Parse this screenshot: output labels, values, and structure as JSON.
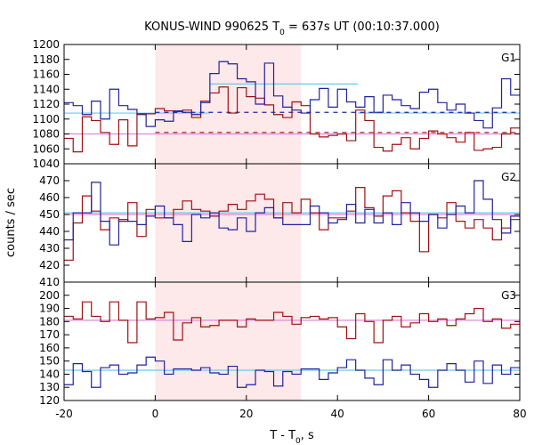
{
  "title": "KONUS-WIND 990625 T",
  "title_sub": "0",
  "title_rest": " = 637s UT (00:10:37.000)",
  "xlabel_main": "T - T",
  "xlabel_sub": "0",
  "xlabel_rest": ", s",
  "ylabel": "counts / sec",
  "colors": {
    "red": "#a01010",
    "blue": "#2222a0",
    "cyan": "#66ccee",
    "pink": "#dd88dd",
    "shade": "#fde8ea"
  },
  "chart_data": {
    "type": "line",
    "style": "step",
    "xlim": [
      -20,
      80
    ],
    "xticks": [
      -20,
      0,
      20,
      40,
      60,
      80
    ],
    "shaded_interval": [
      0,
      32
    ],
    "grid": false,
    "panels": [
      {
        "label": "G1",
        "ylim": [
          1040,
          1200
        ],
        "yticks": [
          1040,
          1060,
          1080,
          1100,
          1120,
          1140,
          1160,
          1180,
          1200
        ],
        "x_edges": [
          -20,
          -18,
          -16,
          -14,
          -12,
          -10,
          -8,
          -6,
          -4,
          -2,
          0,
          2,
          4,
          6,
          8,
          10,
          12,
          14,
          16,
          18,
          20,
          22,
          24,
          26,
          28,
          30,
          32,
          34,
          36,
          38,
          40,
          42,
          44,
          46,
          48,
          50,
          52,
          54,
          56,
          58,
          60,
          62,
          64,
          66,
          68,
          70,
          72,
          74,
          76,
          78,
          80
        ],
        "series": [
          {
            "color": "red",
            "values": [
              1074,
              1056,
              1103,
              1098,
              1082,
              1066,
              1099,
              1064,
              1106,
              1107,
              1114,
              1111,
              1110,
              1112,
              1102,
              1124,
              1135,
              1143,
              1108,
              1142,
              1130,
              1128,
              1119,
              1106,
              1102,
              1123,
              1118,
              1080,
              1076,
              1078,
              1080,
              1071,
              1112,
              1098,
              1062,
              1057,
              1066,
              1075,
              1060,
              1074,
              1084,
              1080,
              1075,
              1069,
              1082,
              1058,
              1060,
              1062,
              1080,
              1088
            ]
          },
          {
            "color": "blue",
            "values": [
              1122,
              1118,
              1106,
              1124,
              1100,
              1140,
              1118,
              1113,
              1107,
              1090,
              1099,
              1097,
              1111,
              1109,
              1106,
              1122,
              1161,
              1177,
              1174,
              1154,
              1150,
              1120,
              1175,
              1131,
              1116,
              1112,
              1108,
              1126,
              1141,
              1116,
              1140,
              1123,
              1116,
              1130,
              1109,
              1132,
              1126,
              1118,
              1114,
              1136,
              1140,
              1122,
              1112,
              1120,
              1108,
              1098,
              1088,
              1115,
              1154,
              1132
            ]
          }
        ],
        "level_lines": [
          {
            "color": "cyan",
            "x": [
              -20,
              12
            ],
            "y": 1108
          },
          {
            "color": "cyan",
            "x": [
              12,
              44.5
            ],
            "y": 1147
          },
          {
            "color": "cyan",
            "x": [
              44.5,
              80
            ],
            "y": 1108
          },
          {
            "color": "pink",
            "x": [
              -20,
              80
            ],
            "y": 1080
          },
          {
            "color": "blue",
            "x": [
              0,
              80
            ],
            "y": 1109,
            "dashed": true
          },
          {
            "color": "red",
            "x": [
              0,
              80
            ],
            "y": 1082,
            "dashed": true
          }
        ]
      },
      {
        "label": "G2",
        "ylim": [
          410,
          480
        ],
        "yticks": [
          410,
          420,
          430,
          440,
          450,
          460,
          470
        ],
        "x_edges": [
          -20,
          -18,
          -16,
          -14,
          -12,
          -10,
          -8,
          -6,
          -4,
          -2,
          0,
          2,
          4,
          6,
          8,
          10,
          12,
          14,
          16,
          18,
          20,
          22,
          24,
          26,
          28,
          30,
          32,
          34,
          36,
          38,
          40,
          42,
          44,
          46,
          48,
          50,
          52,
          54,
          56,
          58,
          60,
          62,
          64,
          66,
          68,
          70,
          72,
          74,
          76,
          78,
          80
        ],
        "series": [
          {
            "color": "red",
            "values": [
              423,
              445,
              461,
              452,
              441,
              448,
              446,
              457,
              437,
              453,
              448,
              448,
              453,
              458,
              453,
              452,
              449,
              452,
              456,
              453,
              458,
              462,
              459,
              448,
              457,
              451,
              459,
              451,
              441,
              448,
              448,
              452,
              466,
              454,
              449,
              461,
              464,
              451,
              446,
              428,
              450,
              448,
              457,
              446,
              442,
              447,
              442,
              435,
              442,
              447
            ]
          },
          {
            "color": "blue",
            "values": [
              435,
              451,
              451,
              469,
              446,
              432,
              447,
              446,
              444,
              449,
              455,
              448,
              444,
              434,
              450,
              448,
              451,
              442,
              441,
              448,
              440,
              451,
              454,
              448,
              444,
              444,
              444,
              455,
              451,
              445,
              447,
              456,
              445,
              453,
              445,
              451,
              444,
              457,
              451,
              446,
              450,
              442,
              450,
              455,
              451,
              470,
              459,
              447,
              439,
              449
            ]
          }
        ],
        "level_lines": [
          {
            "color": "cyan",
            "x": [
              -20,
              80
            ],
            "y": 451
          },
          {
            "color": "pink",
            "x": [
              -20,
              80
            ],
            "y": 450
          }
        ]
      },
      {
        "label": "G3",
        "ylim": [
          120,
          210
        ],
        "yticks": [
          120,
          130,
          140,
          150,
          160,
          170,
          180,
          190,
          200
        ],
        "x_edges": [
          -20,
          -18,
          -16,
          -14,
          -12,
          -10,
          -8,
          -6,
          -4,
          -2,
          0,
          2,
          4,
          6,
          8,
          10,
          12,
          14,
          16,
          18,
          20,
          22,
          24,
          26,
          28,
          30,
          32,
          34,
          36,
          38,
          40,
          42,
          44,
          46,
          48,
          50,
          52,
          54,
          56,
          58,
          60,
          62,
          64,
          66,
          68,
          70,
          72,
          74,
          76,
          78,
          80
        ],
        "series": [
          {
            "color": "red",
            "values": [
              184,
              182,
              195,
              184,
              180,
              195,
              181,
              164,
              195,
              182,
              183,
              187,
              166,
              179,
              183,
              176,
              177,
              181,
              181,
              176,
              182,
              181,
              181,
              187,
              184,
              178,
              183,
              184,
              182,
              183,
              176,
              167,
              186,
              180,
              164,
              181,
              184,
              176,
              179,
              186,
              180,
              182,
              177,
              182,
              186,
              190,
              180,
              182,
              175,
              178
            ]
          },
          {
            "color": "blue",
            "values": [
              132,
              148,
              142,
              130,
              145,
              147,
              140,
              141,
              147,
              153,
              150,
              140,
              144,
              144,
              143,
              145,
              141,
              140,
              146,
              130,
              132,
              143,
              142,
              131,
              142,
              140,
              144,
              144,
              136,
              141,
              145,
              151,
              143,
              137,
              132,
              151,
              143,
              147,
              140,
              136,
              130,
              143,
              148,
              143,
              134,
              150,
              133,
              147,
              140,
              145
            ]
          }
        ],
        "level_lines": [
          {
            "color": "cyan",
            "x": [
              -20,
              80
            ],
            "y": 143
          },
          {
            "color": "pink",
            "x": [
              -20,
              80
            ],
            "y": 181
          }
        ]
      }
    ]
  }
}
